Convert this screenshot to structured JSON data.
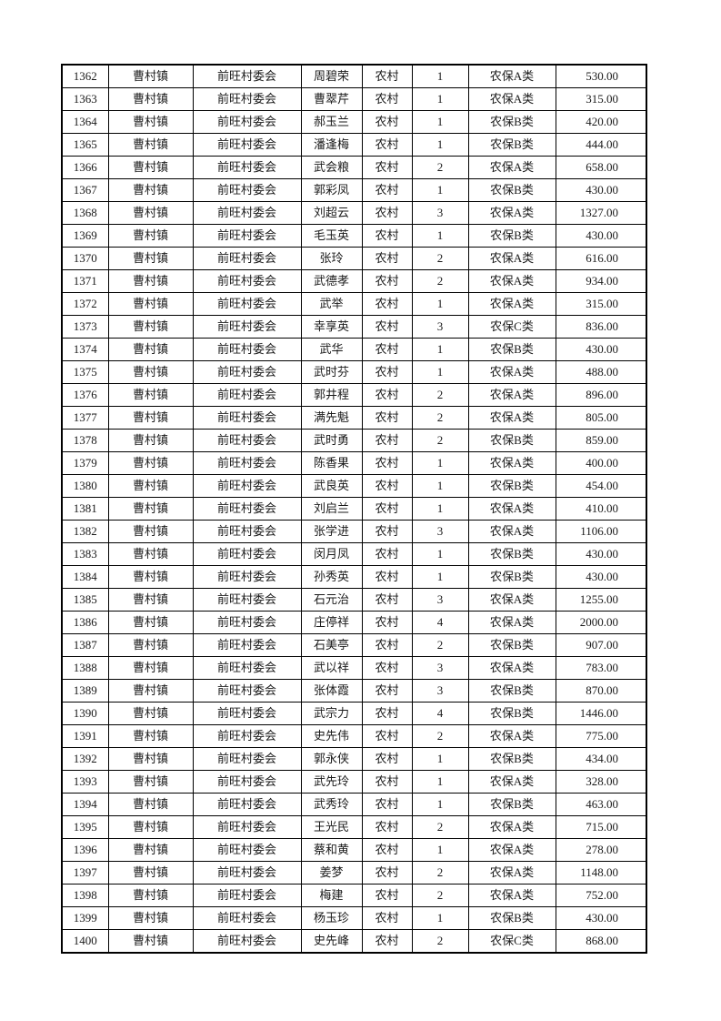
{
  "table": {
    "col_ids": [
      "seq",
      "town",
      "village-committee",
      "name",
      "household-type",
      "person-count",
      "insurance-category",
      "amount"
    ],
    "rows": [
      [
        "1362",
        "曹村镇",
        "前旺村委会",
        "周碧荣",
        "农村",
        "1",
        "农保A类",
        "530.00"
      ],
      [
        "1363",
        "曹村镇",
        "前旺村委会",
        "曹翠芹",
        "农村",
        "1",
        "农保A类",
        "315.00"
      ],
      [
        "1364",
        "曹村镇",
        "前旺村委会",
        "郝玉兰",
        "农村",
        "1",
        "农保B类",
        "420.00"
      ],
      [
        "1365",
        "曹村镇",
        "前旺村委会",
        "潘逢梅",
        "农村",
        "1",
        "农保B类",
        "444.00"
      ],
      [
        "1366",
        "曹村镇",
        "前旺村委会",
        "武会粮",
        "农村",
        "2",
        "农保A类",
        "658.00"
      ],
      [
        "1367",
        "曹村镇",
        "前旺村委会",
        "郭彩凤",
        "农村",
        "1",
        "农保B类",
        "430.00"
      ],
      [
        "1368",
        "曹村镇",
        "前旺村委会",
        "刘超云",
        "农村",
        "3",
        "农保A类",
        "1327.00"
      ],
      [
        "1369",
        "曹村镇",
        "前旺村委会",
        "毛玉英",
        "农村",
        "1",
        "农保B类",
        "430.00"
      ],
      [
        "1370",
        "曹村镇",
        "前旺村委会",
        "张玲",
        "农村",
        "2",
        "农保A类",
        "616.00"
      ],
      [
        "1371",
        "曹村镇",
        "前旺村委会",
        "武德孝",
        "农村",
        "2",
        "农保A类",
        "934.00"
      ],
      [
        "1372",
        "曹村镇",
        "前旺村委会",
        "武举",
        "农村",
        "1",
        "农保A类",
        "315.00"
      ],
      [
        "1373",
        "曹村镇",
        "前旺村委会",
        "幸享英",
        "农村",
        "3",
        "农保C类",
        "836.00"
      ],
      [
        "1374",
        "曹村镇",
        "前旺村委会",
        "武华",
        "农村",
        "1",
        "农保B类",
        "430.00"
      ],
      [
        "1375",
        "曹村镇",
        "前旺村委会",
        "武时芬",
        "农村",
        "1",
        "农保A类",
        "488.00"
      ],
      [
        "1376",
        "曹村镇",
        "前旺村委会",
        "郭井程",
        "农村",
        "2",
        "农保A类",
        "896.00"
      ],
      [
        "1377",
        "曹村镇",
        "前旺村委会",
        "满先魁",
        "农村",
        "2",
        "农保A类",
        "805.00"
      ],
      [
        "1378",
        "曹村镇",
        "前旺村委会",
        "武时勇",
        "农村",
        "2",
        "农保B类",
        "859.00"
      ],
      [
        "1379",
        "曹村镇",
        "前旺村委会",
        "陈香果",
        "农村",
        "1",
        "农保A类",
        "400.00"
      ],
      [
        "1380",
        "曹村镇",
        "前旺村委会",
        "武良英",
        "农村",
        "1",
        "农保B类",
        "454.00"
      ],
      [
        "1381",
        "曹村镇",
        "前旺村委会",
        "刘启兰",
        "农村",
        "1",
        "农保A类",
        "410.00"
      ],
      [
        "1382",
        "曹村镇",
        "前旺村委会",
        "张学进",
        "农村",
        "3",
        "农保A类",
        "1106.00"
      ],
      [
        "1383",
        "曹村镇",
        "前旺村委会",
        "闵月凤",
        "农村",
        "1",
        "农保B类",
        "430.00"
      ],
      [
        "1384",
        "曹村镇",
        "前旺村委会",
        "孙秀英",
        "农村",
        "1",
        "农保B类",
        "430.00"
      ],
      [
        "1385",
        "曹村镇",
        "前旺村委会",
        "石元治",
        "农村",
        "3",
        "农保A类",
        "1255.00"
      ],
      [
        "1386",
        "曹村镇",
        "前旺村委会",
        "庄停祥",
        "农村",
        "4",
        "农保A类",
        "2000.00"
      ],
      [
        "1387",
        "曹村镇",
        "前旺村委会",
        "石美亭",
        "农村",
        "2",
        "农保B类",
        "907.00"
      ],
      [
        "1388",
        "曹村镇",
        "前旺村委会",
        "武以祥",
        "农村",
        "3",
        "农保A类",
        "783.00"
      ],
      [
        "1389",
        "曹村镇",
        "前旺村委会",
        "张体霞",
        "农村",
        "3",
        "农保B类",
        "870.00"
      ],
      [
        "1390",
        "曹村镇",
        "前旺村委会",
        "武宗力",
        "农村",
        "4",
        "农保B类",
        "1446.00"
      ],
      [
        "1391",
        "曹村镇",
        "前旺村委会",
        "史先伟",
        "农村",
        "2",
        "农保A类",
        "775.00"
      ],
      [
        "1392",
        "曹村镇",
        "前旺村委会",
        "郭永侠",
        "农村",
        "1",
        "农保B类",
        "434.00"
      ],
      [
        "1393",
        "曹村镇",
        "前旺村委会",
        "武先玲",
        "农村",
        "1",
        "农保A类",
        "328.00"
      ],
      [
        "1394",
        "曹村镇",
        "前旺村委会",
        "武秀玲",
        "农村",
        "1",
        "农保B类",
        "463.00"
      ],
      [
        "1395",
        "曹村镇",
        "前旺村委会",
        "王光民",
        "农村",
        "2",
        "农保A类",
        "715.00"
      ],
      [
        "1396",
        "曹村镇",
        "前旺村委会",
        "蔡和黄",
        "农村",
        "1",
        "农保A类",
        "278.00"
      ],
      [
        "1397",
        "曹村镇",
        "前旺村委会",
        "姜梦",
        "农村",
        "2",
        "农保A类",
        "1148.00"
      ],
      [
        "1398",
        "曹村镇",
        "前旺村委会",
        "梅建",
        "农村",
        "2",
        "农保A类",
        "752.00"
      ],
      [
        "1399",
        "曹村镇",
        "前旺村委会",
        "杨玉珍",
        "农村",
        "1",
        "农保B类",
        "430.00"
      ],
      [
        "1400",
        "曹村镇",
        "前旺村委会",
        "史先峰",
        "农村",
        "2",
        "农保C类",
        "868.00"
      ]
    ]
  }
}
